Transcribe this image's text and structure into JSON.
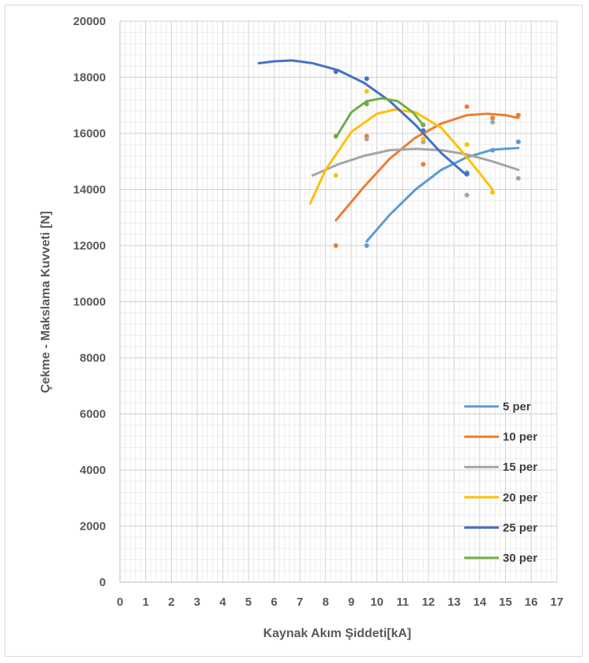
{
  "chart_data": {
    "type": "scatter",
    "title": "",
    "xlabel": "Kaynak Akım Şiddeti[kA]",
    "ylabel": "Çekme - Makslama Kuvveti  [N]",
    "xlim": [
      0,
      17
    ],
    "ylim": [
      0,
      20000
    ],
    "x_ticks": [
      "0",
      "1",
      "2",
      "3",
      "4",
      "5",
      "6",
      "7",
      "8",
      "9",
      "10",
      "11",
      "12",
      "13",
      "14",
      "15",
      "16",
      "17"
    ],
    "y_ticks": [
      "0",
      "2000",
      "4000",
      "6000",
      "8000",
      "10000",
      "12000",
      "14000",
      "16000",
      "18000",
      "20000"
    ],
    "grid": "major and minor",
    "legend_position": "lower-right",
    "series": [
      {
        "name": "5 per",
        "color": "#5b9bd5",
        "points": [
          [
            9.6,
            12000
          ],
          [
            13.5,
            14600
          ],
          [
            14.5,
            15400
          ],
          [
            15.5,
            15700
          ]
        ],
        "trend": [
          [
            9.6,
            12150
          ],
          [
            10.5,
            13100
          ],
          [
            11.5,
            14000
          ],
          [
            12.5,
            14700
          ],
          [
            13.5,
            15150
          ],
          [
            14.5,
            15420
          ],
          [
            15.5,
            15480
          ]
        ]
      },
      {
        "name": "10 per",
        "color": "#ed7d31",
        "points": [
          [
            8.4,
            12000
          ],
          [
            9.6,
            15900
          ],
          [
            11.8,
            14900
          ],
          [
            13.5,
            16950
          ],
          [
            14.5,
            16550
          ],
          [
            15.5,
            16650
          ]
        ],
        "trend": [
          [
            8.4,
            12900
          ],
          [
            9.5,
            14100
          ],
          [
            10.5,
            15100
          ],
          [
            11.5,
            15850
          ],
          [
            12.5,
            16350
          ],
          [
            13.5,
            16650
          ],
          [
            14.3,
            16700
          ],
          [
            15.0,
            16650
          ],
          [
            15.5,
            16550
          ]
        ]
      },
      {
        "name": "15 per",
        "color": "#a5a5a5",
        "points": [
          [
            9.6,
            15800
          ],
          [
            11.8,
            15700
          ],
          [
            13.5,
            13800
          ],
          [
            14.5,
            16400
          ],
          [
            15.5,
            14400
          ]
        ],
        "trend": [
          [
            7.5,
            14500
          ],
          [
            8.5,
            14900
          ],
          [
            9.5,
            15200
          ],
          [
            10.5,
            15400
          ],
          [
            11.5,
            15450
          ],
          [
            12.5,
            15400
          ],
          [
            13.5,
            15250
          ],
          [
            14.5,
            15000
          ],
          [
            15.5,
            14700
          ]
        ]
      },
      {
        "name": "20 per",
        "color": "#ffc000",
        "points": [
          [
            8.4,
            14500
          ],
          [
            9.6,
            17500
          ],
          [
            11.8,
            15800
          ],
          [
            13.5,
            15600
          ],
          [
            14.5,
            13900
          ]
        ],
        "trend": [
          [
            7.4,
            13500
          ],
          [
            8.0,
            14700
          ],
          [
            9.0,
            16050
          ],
          [
            10.0,
            16700
          ],
          [
            10.7,
            16850
          ],
          [
            11.5,
            16750
          ],
          [
            12.5,
            16200
          ],
          [
            13.5,
            15150
          ],
          [
            14.5,
            14000
          ]
        ]
      },
      {
        "name": "25 per",
        "color": "#4472c4",
        "points": [
          [
            8.4,
            18200
          ],
          [
            9.6,
            17950
          ],
          [
            11.8,
            16100
          ],
          [
            13.5,
            14550
          ]
        ],
        "trend": [
          [
            5.4,
            18500
          ],
          [
            6.0,
            18570
          ],
          [
            6.7,
            18600
          ],
          [
            7.5,
            18500
          ],
          [
            8.5,
            18250
          ],
          [
            9.5,
            17800
          ],
          [
            10.5,
            17150
          ],
          [
            11.5,
            16300
          ],
          [
            12.5,
            15300
          ],
          [
            13.5,
            14500
          ]
        ]
      },
      {
        "name": "30 per",
        "color": "#70ad47",
        "points": [
          [
            8.4,
            15900
          ],
          [
            9.6,
            17050
          ],
          [
            11.8,
            16300
          ]
        ],
        "trend": [
          [
            8.4,
            15850
          ],
          [
            9.0,
            16750
          ],
          [
            9.6,
            17150
          ],
          [
            10.2,
            17250
          ],
          [
            10.8,
            17150
          ],
          [
            11.4,
            16750
          ],
          [
            11.8,
            16300
          ]
        ]
      }
    ]
  }
}
